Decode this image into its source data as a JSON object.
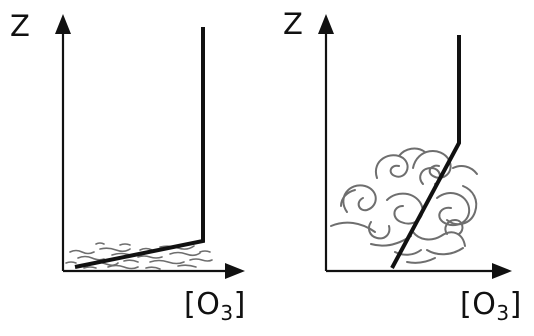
{
  "panels": [
    {
      "z_label": "Z",
      "x_label": {
        "bracket_open": "[",
        "species": "O",
        "subscript": "3",
        "bracket_close": "]"
      },
      "turbulence": "thin-layer"
    },
    {
      "z_label": "Z",
      "x_label": {
        "bracket_open": "[",
        "species": "O",
        "subscript": "3",
        "bracket_close": "]"
      },
      "turbulence": "deep-eddies"
    }
  ],
  "colors": {
    "line": "#111111",
    "turbulence": "#6e6e6e",
    "background": "#ffffff"
  }
}
